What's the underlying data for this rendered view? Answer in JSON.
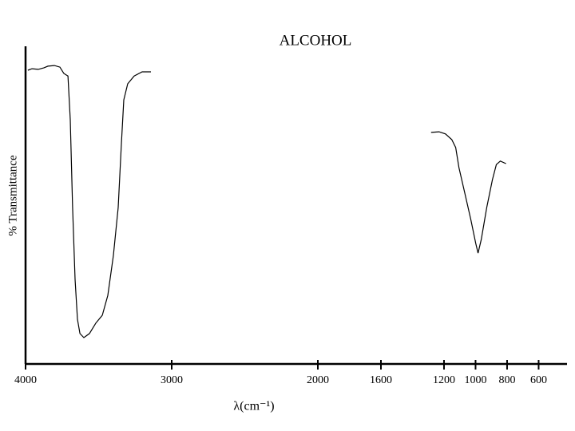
{
  "chart_data": {
    "type": "line",
    "title": "ALCOHOL",
    "ylabel": "% Transmittance",
    "xlabel": "λ(cm⁻¹)",
    "x": [
      3984,
      3956,
      3913,
      3874,
      3847,
      3803,
      3765,
      3738,
      3721,
      3710,
      3694,
      3678,
      3661,
      3645,
      3628,
      3601,
      3563,
      3519,
      3475,
      3437,
      3399,
      3366,
      3344,
      3328,
      3301,
      3257,
      3202,
      3142,
      null,
      1282,
      1232,
      1191,
      1151,
      1126,
      1105,
      1070,
      1030,
      999,
      984,
      964,
      929,
      893,
      868,
      843,
      807
    ],
    "series": [
      {
        "name": "Alcohol",
        "color": "#000000",
        "values": [
          92.9,
          93.4,
          93.2,
          93.7,
          94.2,
          94.4,
          93.9,
          91.9,
          91.4,
          91.1,
          77.2,
          49.4,
          26.6,
          13.9,
          9.4,
          8.1,
          9.4,
          12.7,
          15.2,
          21.5,
          34.2,
          49.4,
          69.6,
          83.5,
          88.6,
          91.1,
          92.4,
          92.4,
          null,
          73.2,
          73.4,
          72.7,
          70.9,
          68.4,
          62.0,
          54.4,
          45.6,
          38.0,
          34.9,
          39.2,
          49.4,
          58.2,
          63.0,
          64.1,
          63.3
        ]
      }
    ],
    "xlim": [
      4000,
      420
    ],
    "xticks": [
      4000,
      3000,
      2000,
      1600,
      1200,
      1000,
      800,
      600
    ],
    "ylim": [
      0,
      100
    ],
    "grid": false
  }
}
